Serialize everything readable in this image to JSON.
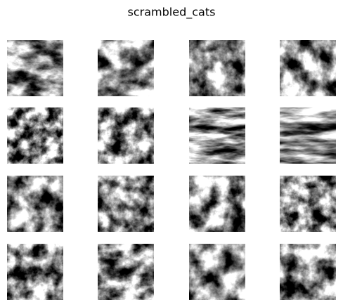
{
  "title": "scrambled_cats"
}
